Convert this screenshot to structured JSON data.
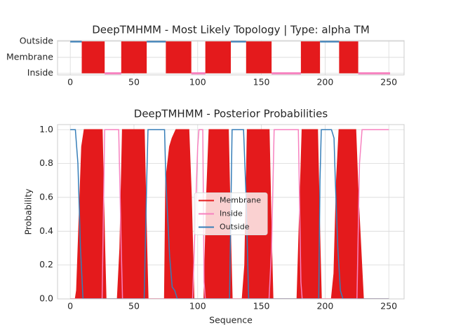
{
  "chart_data": [
    {
      "type": "topology",
      "title": "DeepTMHMM - Most Likely Topology | Type: alpha TM",
      "categories": [
        "Inside",
        "Membrane",
        "Outside"
      ],
      "colors": [
        "#f781bf",
        "#e41a1c",
        "#377eb8"
      ],
      "segments": [
        {
          "category": 2,
          "start": 0,
          "end": 9
        },
        {
          "category": 1,
          "start": 9,
          "end": 27
        },
        {
          "category": 0,
          "start": 27,
          "end": 40
        },
        {
          "category": 1,
          "start": 40,
          "end": 60
        },
        {
          "category": 2,
          "start": 60,
          "end": 75
        },
        {
          "category": 1,
          "start": 75,
          "end": 95
        },
        {
          "category": 0,
          "start": 95,
          "end": 106
        },
        {
          "category": 1,
          "start": 106,
          "end": 126
        },
        {
          "category": 2,
          "start": 126,
          "end": 138
        },
        {
          "category": 1,
          "start": 138,
          "end": 158
        },
        {
          "category": 0,
          "start": 158,
          "end": 181
        },
        {
          "category": 1,
          "start": 181,
          "end": 196
        },
        {
          "category": 2,
          "start": 196,
          "end": 211
        },
        {
          "category": 1,
          "start": 211,
          "end": 226
        },
        {
          "category": 0,
          "start": 226,
          "end": 251
        }
      ],
      "xlim": [
        -10,
        262
      ],
      "xticks": [
        0,
        50,
        100,
        150,
        200,
        250
      ],
      "ylim": [
        -0.1,
        2.05
      ],
      "grid": true
    },
    {
      "type": "line",
      "title": "DeepTMHMM - Posterior Probabilities",
      "x_label": "Sequence",
      "y_label": "Probability",
      "series": [
        {
          "name": "Membrane",
          "color": "#e41a1c",
          "fill": true,
          "x": [
            0,
            4,
            5,
            9,
            11,
            25,
            27,
            28,
            37,
            39,
            41,
            58,
            60,
            61,
            74,
            75,
            78,
            80,
            83,
            93,
            95,
            97,
            105,
            107,
            109,
            124,
            126,
            127,
            135,
            137,
            139,
            156,
            158,
            159,
            178,
            180,
            182,
            194,
            196,
            197,
            205,
            207,
            209,
            211,
            224,
            226,
            229,
            230,
            250
          ],
          "values": [
            0,
            0,
            0.05,
            0.9,
            1,
            1,
            0.3,
            0,
            0,
            0.3,
            1,
            1,
            0.3,
            0,
            0,
            0.7,
            0.9,
            0.95,
            1,
            1,
            0.6,
            0,
            0,
            0.6,
            1,
            1,
            0.3,
            0,
            0,
            0.2,
            1,
            1,
            0.3,
            0,
            0,
            0.5,
            1,
            1,
            0.3,
            0,
            0,
            0.15,
            0.7,
            1,
            1,
            0.6,
            0.15,
            0,
            0
          ]
        },
        {
          "name": "Inside",
          "color": "#f781bf",
          "fill": false,
          "x": [
            0,
            25,
            27,
            38,
            40,
            41,
            96,
            100,
            101,
            104,
            105,
            106,
            156,
            158,
            160,
            179,
            181,
            182,
            225,
            227,
            229,
            250
          ],
          "values": [
            0,
            0,
            1,
            1,
            0.3,
            0,
            0,
            0.9,
            1,
            1,
            0.1,
            0,
            0,
            0.3,
            1,
            1,
            0.1,
            0,
            0,
            0.8,
            1,
            1
          ]
        },
        {
          "name": "Outside",
          "color": "#377eb8",
          "fill": false,
          "x": [
            0,
            4,
            6,
            8,
            10,
            58,
            60,
            61,
            74,
            75,
            78,
            80,
            82,
            84,
            125,
            127,
            136,
            138,
            140,
            195,
            196,
            197,
            205,
            207,
            208,
            210,
            212,
            214,
            250
          ],
          "values": [
            1,
            1,
            0.8,
            0.3,
            0,
            0,
            0.7,
            1,
            1,
            0.7,
            0.25,
            0.07,
            0.05,
            0,
            0,
            1,
            1,
            0.6,
            0,
            0,
            0.7,
            1,
            1,
            0.95,
            0.7,
            0.3,
            0.05,
            0,
            0
          ]
        }
      ],
      "xlim": [
        -10,
        262
      ],
      "xticks": [
        0,
        50,
        100,
        150,
        200,
        250
      ],
      "ylim": [
        0,
        1.03
      ],
      "yticks": [
        {
          "value": 0,
          "label": "0.0"
        },
        {
          "value": 0.2,
          "label": "0.2"
        },
        {
          "value": 0.4,
          "label": "0.4"
        },
        {
          "value": 0.6,
          "label": "0.6"
        },
        {
          "value": 0.8,
          "label": "0.8"
        },
        {
          "value": 1,
          "label": "1.0"
        }
      ],
      "grid": true,
      "legend": "center"
    }
  ]
}
